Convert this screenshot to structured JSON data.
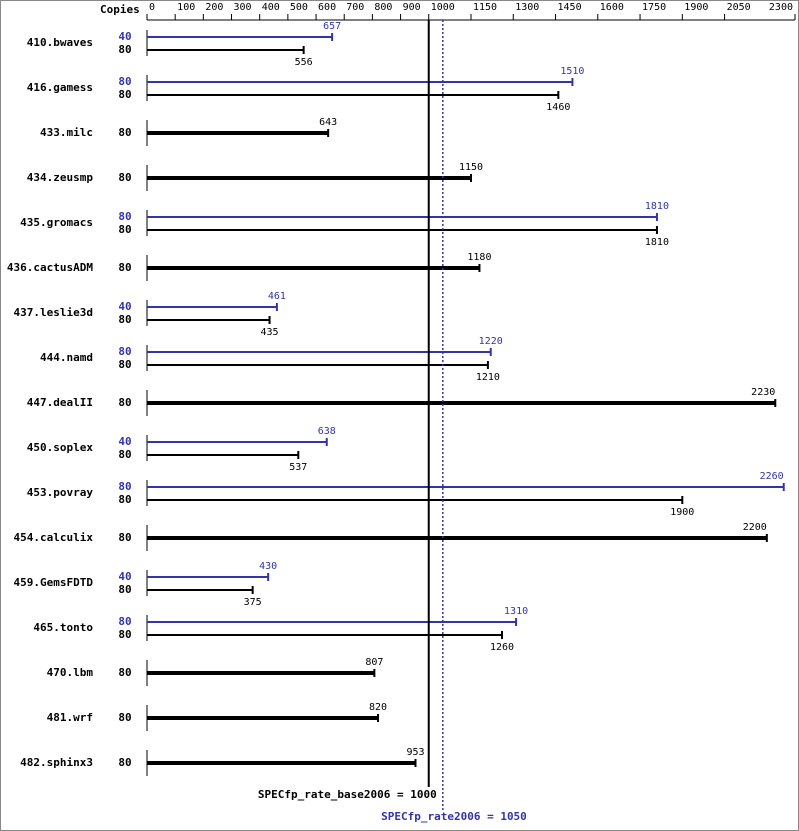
{
  "chart_data": {
    "type": "bar",
    "copies_label": "Copies",
    "categories": [
      "410.bwaves",
      "416.gamess",
      "433.milc",
      "434.zeusmp",
      "435.gromacs",
      "436.cactusADM",
      "437.leslie3d",
      "444.namd",
      "447.dealII",
      "450.soplex",
      "453.povray",
      "454.calculix",
      "459.GemsFDTD",
      "465.tonto",
      "470.lbm",
      "481.wrf",
      "482.sphinx3"
    ],
    "series": [
      {
        "color": "#3333aa",
        "copies": [
          40,
          80,
          null,
          null,
          80,
          null,
          40,
          80,
          null,
          40,
          80,
          null,
          40,
          80,
          null,
          null,
          null
        ],
        "values": [
          657,
          1510,
          null,
          null,
          1810,
          null,
          461,
          1220,
          null,
          638,
          2260,
          null,
          430,
          1310,
          null,
          null,
          null
        ]
      },
      {
        "color": "#000000",
        "copies": [
          80,
          80,
          80,
          80,
          80,
          80,
          80,
          80,
          80,
          80,
          80,
          80,
          80,
          80,
          80,
          80,
          80
        ],
        "values": [
          556,
          1460,
          643,
          1150,
          1810,
          1180,
          435,
          1210,
          2230,
          537,
          1900,
          2200,
          375,
          1260,
          807,
          820,
          953
        ]
      }
    ],
    "xlim": [
      0,
      2300
    ],
    "xticks": [
      0,
      100,
      200,
      300,
      400,
      500,
      600,
      700,
      800,
      900,
      1000,
      1150,
      1300,
      1450,
      1600,
      1750,
      1900,
      2050,
      2300
    ],
    "reference_lines": [
      {
        "value": 1000,
        "label": "SPECfp_rate_base2006 = 1000",
        "color": "#000000",
        "dotted": false
      },
      {
        "value": 1050,
        "label": "SPECfp_rate2006 = 1050",
        "color": "#3333aa",
        "dotted": true
      }
    ]
  }
}
